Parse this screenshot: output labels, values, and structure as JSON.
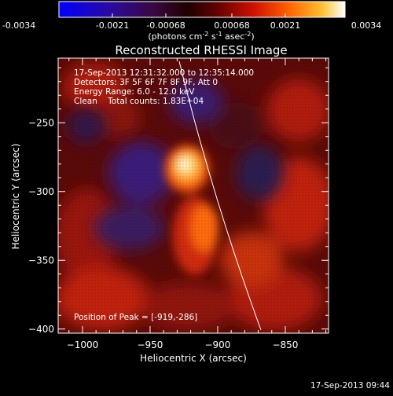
{
  "colorbar": {
    "ticks": [
      "-0.0034",
      "-0.0021",
      "-0.00068",
      "0.00068",
      "0.0021",
      "0.0034"
    ],
    "units_main": "(photons cm",
    "units_exp1": "-2",
    "units_mid": " s",
    "units_exp2": "-1",
    "units_end": " asec",
    "units_exp3": "-2",
    "units_close": ")"
  },
  "plot": {
    "title": "Reconstructed RHESSI Image",
    "xlabel": "Heliocentric X (arcsec)",
    "ylabel": "Heliocentric Y (arcsec)",
    "xticks": [
      -1000,
      -950,
      -900,
      -850
    ],
    "yticks": [
      -250,
      -300,
      -350,
      -400
    ],
    "xlim": [
      -1018,
      -818
    ],
    "ylim": [
      -403,
      -203
    ]
  },
  "info": {
    "line1": "17-Sep-2013 12:31:32.000 to 12:35:14.000",
    "line2": "Detectors: 3F 5F 6F 7F 8F 9F, Att 0",
    "line3": "Energy Range: 6.0 - 12.0 keV",
    "line4": "Clean    Total counts: 1.83E+04",
    "peak": "Position of Peak = [-919,-286]"
  },
  "footer": {
    "timestamp": "17-Sep-2013 09:44"
  },
  "colors": {
    "background": "#000000",
    "text": "#ffffff"
  }
}
